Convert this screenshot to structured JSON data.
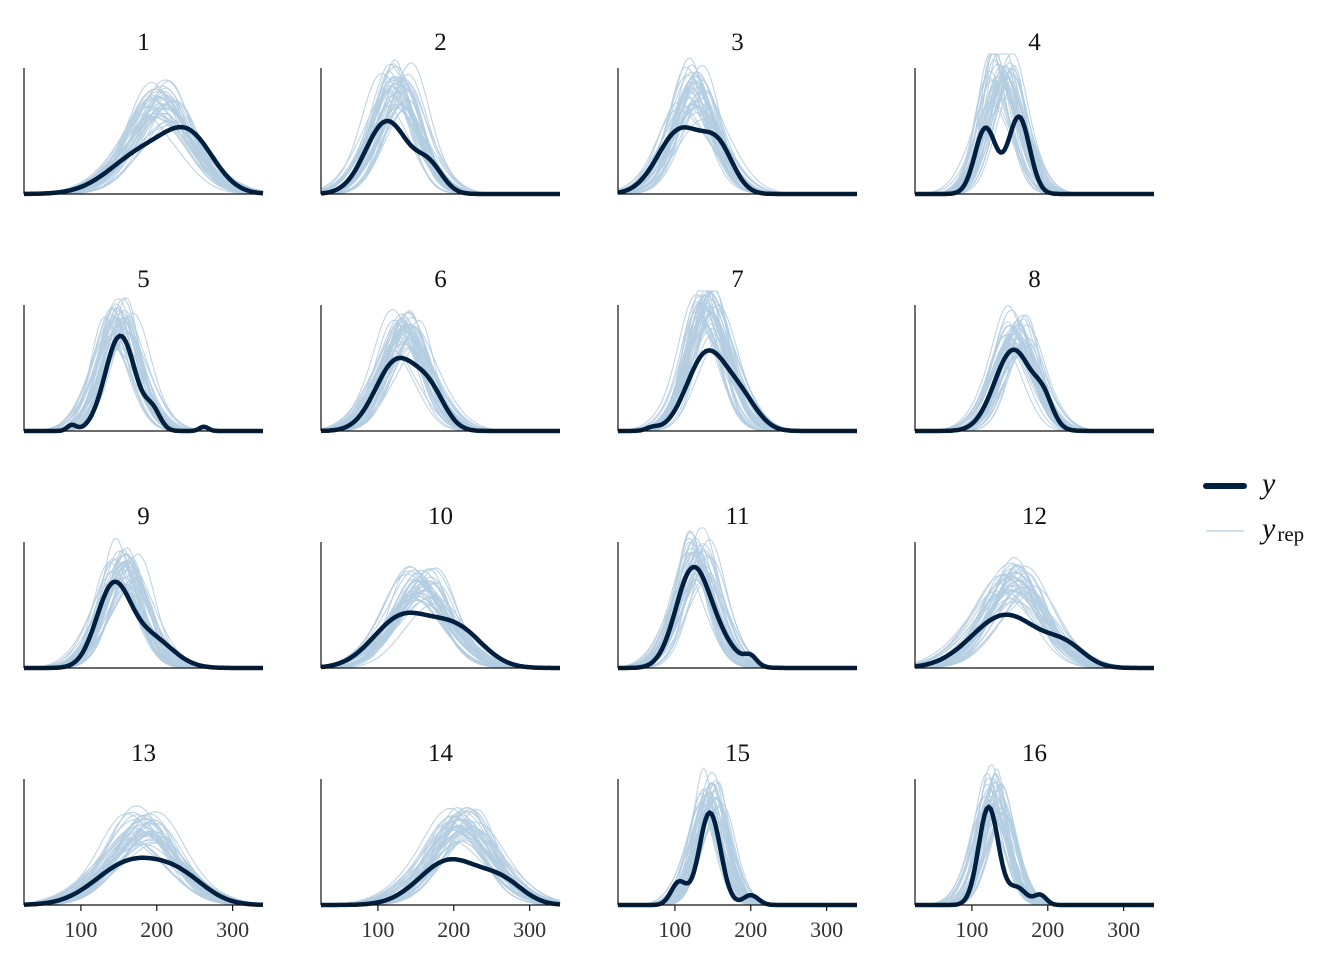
{
  "colors": {
    "y": "#011f3f",
    "yrep": "#b3cde0",
    "axis": "#111111"
  },
  "chart_data": {
    "type": "density_overlay_facets",
    "n_rows": 4,
    "n_cols": 4,
    "xlim": [
      25,
      340
    ],
    "x_ticks": [
      100,
      200,
      300
    ],
    "x_tick_labels": [
      "100",
      "200",
      "300"
    ],
    "y_axis_visible": false,
    "legend_position": "right",
    "legend": {
      "y": "y",
      "yrep_main": "y",
      "yrep_sub": "rep"
    },
    "n_replicates": 40,
    "panels": [
      {
        "title": "1",
        "y_peaks": [
          [
            185,
            45,
            0.3
          ],
          [
            245,
            32,
            0.33
          ]
        ],
        "yrep_center": 205,
        "yrep_sd": 45,
        "yrep_height": 0.6
      },
      {
        "title": "2",
        "y_peaks": [
          [
            112,
            28,
            0.52
          ],
          [
            168,
            18,
            0.18
          ]
        ],
        "yrep_center": 125,
        "yrep_sd": 32,
        "yrep_height": 0.72
      },
      {
        "title": "3",
        "y_peaks": [
          [
            108,
            30,
            0.46
          ],
          [
            158,
            20,
            0.28
          ]
        ],
        "yrep_center": 125,
        "yrep_sd": 33,
        "yrep_height": 0.68
      },
      {
        "title": "4",
        "y_peaks": [
          [
            118,
            14,
            0.47
          ],
          [
            162,
            14,
            0.55
          ]
        ],
        "yrep_center": 140,
        "yrep_sd": 25,
        "yrep_height": 0.8
      },
      {
        "title": "5",
        "y_peaks": [
          [
            152,
            20,
            0.68
          ],
          [
            195,
            10,
            0.12
          ],
          [
            88,
            6,
            0.04
          ],
          [
            262,
            6,
            0.03
          ]
        ],
        "yrep_center": 150,
        "yrep_sd": 28,
        "yrep_height": 0.72
      },
      {
        "title": "6",
        "y_peaks": [
          [
            125,
            28,
            0.5
          ],
          [
            170,
            20,
            0.22
          ]
        ],
        "yrep_center": 135,
        "yrep_sd": 33,
        "yrep_height": 0.68
      },
      {
        "title": "7",
        "y_peaks": [
          [
            142,
            26,
            0.55
          ],
          [
            188,
            22,
            0.2
          ],
          [
            70,
            8,
            0.02
          ]
        ],
        "yrep_center": 145,
        "yrep_sd": 30,
        "yrep_height": 0.78
      },
      {
        "title": "8",
        "y_peaks": [
          [
            155,
            25,
            0.58
          ],
          [
            195,
            12,
            0.15
          ]
        ],
        "yrep_center": 160,
        "yrep_sd": 28,
        "yrep_height": 0.64
      },
      {
        "title": "9",
        "y_peaks": [
          [
            142,
            22,
            0.55
          ],
          [
            190,
            30,
            0.22
          ]
        ],
        "yrep_center": 155,
        "yrep_sd": 30,
        "yrep_height": 0.68
      },
      {
        "title": "10",
        "y_peaks": [
          [
            132,
            38,
            0.36
          ],
          [
            205,
            34,
            0.26
          ]
        ],
        "yrep_center": 155,
        "yrep_sd": 42,
        "yrep_height": 0.56
      },
      {
        "title": "11",
        "y_peaks": [
          [
            122,
            22,
            0.64
          ],
          [
            155,
            25,
            0.18
          ],
          [
            200,
            8,
            0.06
          ]
        ],
        "yrep_center": 130,
        "yrep_sd": 28,
        "yrep_height": 0.72
      },
      {
        "title": "12",
        "y_peaks": [
          [
            145,
            45,
            0.38
          ],
          [
            225,
            25,
            0.12
          ]
        ],
        "yrep_center": 155,
        "yrep_sd": 45,
        "yrep_height": 0.56
      },
      {
        "title": "13",
        "y_peaks": [
          [
            165,
            45,
            0.3
          ],
          [
            232,
            35,
            0.16
          ]
        ],
        "yrep_center": 180,
        "yrep_sd": 48,
        "yrep_height": 0.5
      },
      {
        "title": "14",
        "y_peaks": [
          [
            195,
            40,
            0.32
          ],
          [
            265,
            28,
            0.14
          ]
        ],
        "yrep_center": 210,
        "yrep_sd": 45,
        "yrep_height": 0.52
      },
      {
        "title": "15",
        "y_peaks": [
          [
            146,
            14,
            0.66
          ],
          [
            105,
            10,
            0.16
          ],
          [
            200,
            10,
            0.07
          ]
        ],
        "yrep_center": 145,
        "yrep_sd": 22,
        "yrep_height": 0.74
      },
      {
        "title": "16",
        "y_peaks": [
          [
            122,
            13,
            0.7
          ],
          [
            160,
            12,
            0.12
          ],
          [
            190,
            8,
            0.07
          ]
        ],
        "yrep_center": 130,
        "yrep_sd": 22,
        "yrep_height": 0.74
      }
    ]
  }
}
